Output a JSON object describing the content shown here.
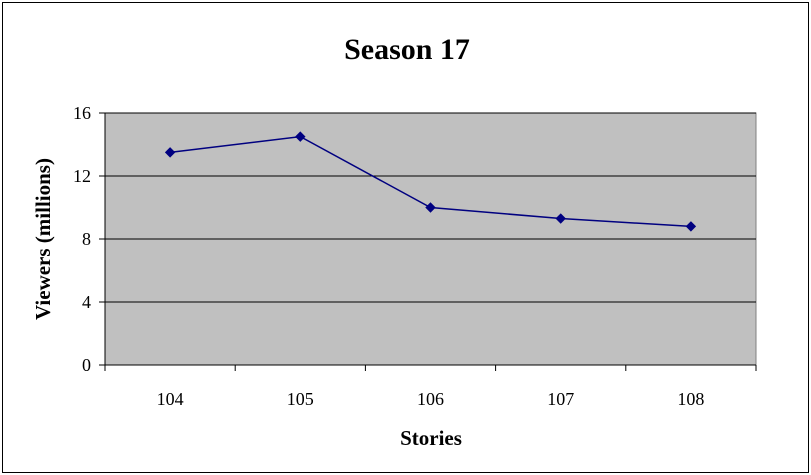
{
  "chart_data": {
    "type": "line",
    "title": "Season 17",
    "xlabel": "Stories",
    "ylabel": "Viewers (millions)",
    "categories": [
      "104",
      "105",
      "106",
      "107",
      "108"
    ],
    "series": [
      {
        "values": [
          13.5,
          14.5,
          10.0,
          9.3,
          8.8
        ]
      }
    ],
    "ylim": [
      0,
      16
    ],
    "yticks": [
      0,
      4,
      8,
      12,
      16
    ],
    "grid": true,
    "legend": "none",
    "colors": {
      "plot_background": "#c0c0c0",
      "line": "#000080",
      "marker": "#000080",
      "gridline": "#000000"
    }
  }
}
